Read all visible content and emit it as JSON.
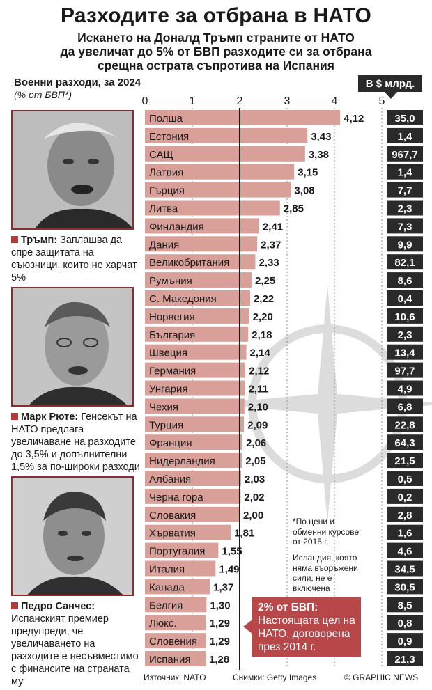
{
  "header": {
    "title": "Разходите за отбрана в НАТО",
    "subtitle_lines": [
      "Искането на Доналд Тръмп страните от НАТО",
      "да увеличат до 5% от БВП разходите си за отбрана",
      "срещна острата съпротива на Испания"
    ]
  },
  "axis": {
    "title": "Военни разходи, за 2024",
    "unit": "(% от БВП*)"
  },
  "usd_header": "В $ млрд.",
  "colors": {
    "bar": "#d9a09a",
    "usd_box": "#2a2a2a",
    "accent": "#b8474a",
    "emblem": "#dcdcdc"
  },
  "chart_data": {
    "type": "bar",
    "orientation": "horizontal",
    "categories": [
      "Полша",
      "Естония",
      "САЩ",
      "Латвия",
      "Гърция",
      "Литва",
      "Финландия",
      "Дания",
      "Великобритания",
      "Румъния",
      "С. Македония",
      "Норвегия",
      "България",
      "Швеция",
      "Германия",
      "Унгария",
      "Чехия",
      "Турция",
      "Франция",
      "Нидерландия",
      "Албания",
      "Черна гора",
      "Словакия",
      "Хърватия",
      "Португалия",
      "Италия",
      "Канада",
      "Белгия",
      "Люкс.",
      "Словения",
      "Испания"
    ],
    "values": [
      4.12,
      3.43,
      3.38,
      3.15,
      3.08,
      2.85,
      2.41,
      2.37,
      2.33,
      2.25,
      2.22,
      2.2,
      2.18,
      2.14,
      2.12,
      2.11,
      2.1,
      2.09,
      2.06,
      2.05,
      2.03,
      2.02,
      2.0,
      1.81,
      1.55,
      1.49,
      1.37,
      1.3,
      1.29,
      1.29,
      1.28
    ],
    "value_labels": [
      "4,12",
      "3,43",
      "3,38",
      "3,15",
      "3,08",
      "2,85",
      "2,41",
      "2,37",
      "2,33",
      "2,25",
      "2,22",
      "2,20",
      "2,18",
      "2,14",
      "2,12",
      "2,11",
      "2,10",
      "2,09",
      "2,06",
      "2,05",
      "2,03",
      "2,02",
      "2,00",
      "1,81",
      "1,55",
      "1,49",
      "1,37",
      "1,30",
      "1,29",
      "1,29",
      "1,28"
    ],
    "usd_bn_labels": [
      "35,0",
      "1,4",
      "967,7",
      "1,4",
      "7,7",
      "2,3",
      "7,3",
      "9,9",
      "82,1",
      "8,6",
      "0,4",
      "10,6",
      "2,3",
      "13,4",
      "97,7",
      "4,9",
      "6,8",
      "22,8",
      "64,3",
      "21,5",
      "0,5",
      "0,2",
      "2,8",
      "1,6",
      "4,6",
      "34,5",
      "30,5",
      "8,5",
      "0,8",
      "0,9",
      "21,3"
    ],
    "x_ticks": [
      "0",
      "1",
      "2",
      "3",
      "4",
      "5"
    ],
    "xlim": [
      0,
      5
    ],
    "reference_line": 2
  },
  "people": [
    {
      "name": "Тръмп:",
      "text": "Заплашва да спре защитата на съюзници, които не харчат 5%"
    },
    {
      "name": "Марк Рюте:",
      "text": "Генсекът на НАТО предлага увеличаване на разходите до 3,5% и допълнителни 1,5% за по-широки разходи"
    },
    {
      "name": "Педро Санчес:",
      "text": "Испанският премиер предупреди, че увеличаването на разходите е несъвместимо с финансите на страната му"
    }
  ],
  "notes": {
    "prices": "*По цени и обменни курсове от 2015 г.",
    "iceland": "Исландия, която няма въоръжени сили, не е включена"
  },
  "goal": {
    "title": "2% от БВП:",
    "text": "Настоящата цел на НАТО, договорена през 2014 г."
  },
  "footer": {
    "source": "Източник: NATO",
    "photos": "Снимки: Getty Images",
    "credit": "© GRAPHIC NEWS"
  }
}
